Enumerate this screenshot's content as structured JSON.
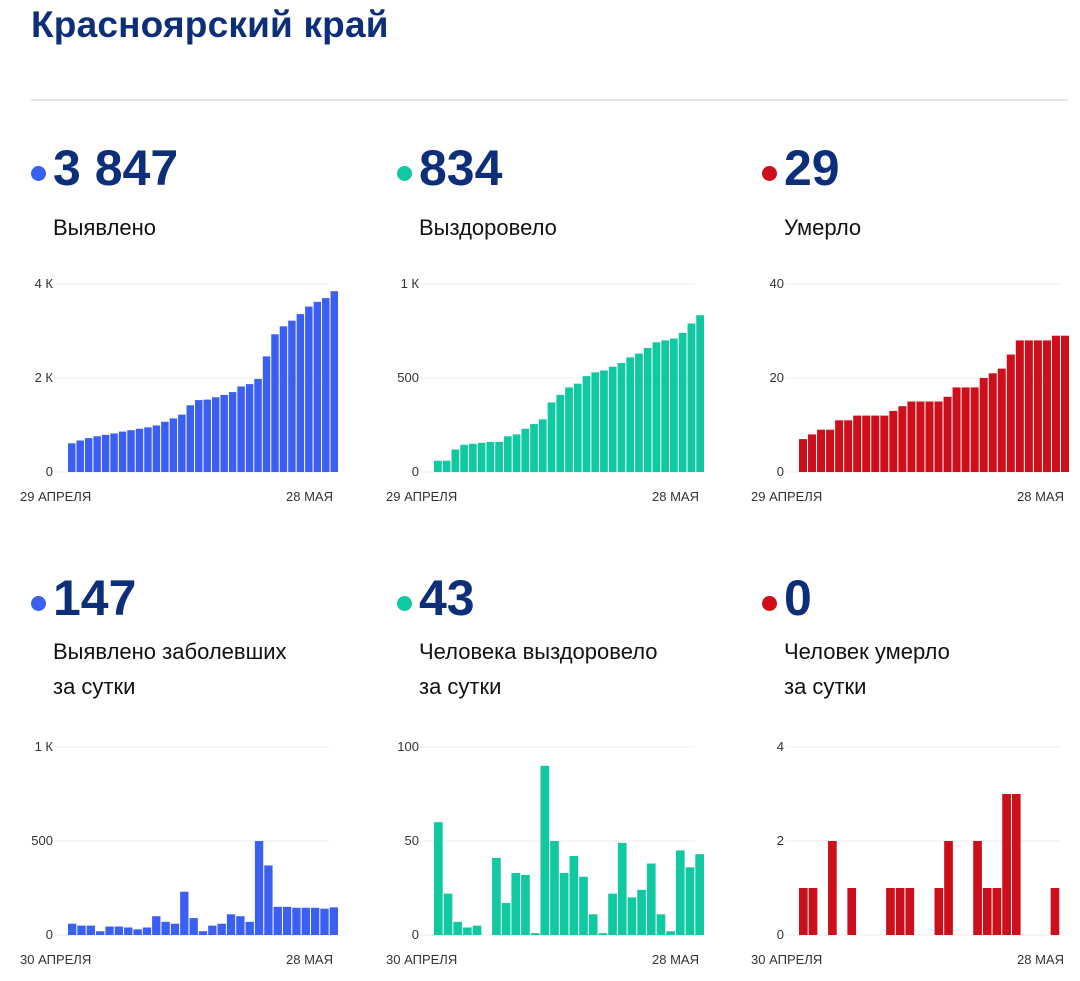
{
  "title": "Красноярский край",
  "colors": {
    "blue": "#3b5ff0",
    "green": "#11c9a0",
    "red": "#cc0f1a",
    "heading": "#0d2f7a"
  },
  "panels": [
    {
      "value": "3 847",
      "label": "Выявлено",
      "chart_data": {
        "type": "bar",
        "color": "#3b5ff0",
        "x_start_label": "29 АПРЕЛЯ",
        "x_end_label": "28 МАЯ",
        "y_ticks": [
          "0",
          "2 К",
          "4 К"
        ],
        "ylim": [
          0,
          4000
        ],
        "values": [
          610,
          670,
          720,
          760,
          790,
          820,
          860,
          890,
          920,
          950,
          990,
          1070,
          1140,
          1220,
          1420,
          1530,
          1540,
          1590,
          1640,
          1700,
          1820,
          1870,
          1980,
          2460,
          2930,
          3100,
          3220,
          3360,
          3520,
          3620,
          3700,
          3847
        ]
      }
    },
    {
      "value": "834",
      "label": "Выздоровело",
      "chart_data": {
        "type": "bar",
        "color": "#11c9a0",
        "x_start_label": "29 АПРЕЛЯ",
        "x_end_label": "28 МАЯ",
        "y_ticks": [
          "0",
          "500",
          "1 К"
        ],
        "ylim": [
          0,
          1000
        ],
        "values": [
          60,
          60,
          120,
          145,
          150,
          155,
          160,
          160,
          190,
          200,
          230,
          255,
          280,
          370,
          410,
          450,
          470,
          510,
          530,
          540,
          560,
          580,
          610,
          630,
          660,
          690,
          700,
          710,
          740,
          790,
          834
        ]
      }
    },
    {
      "value": "29",
      "label": "Умерло",
      "chart_data": {
        "type": "bar",
        "color": "#cc0f1a",
        "x_start_label": "29 АПРЕЛЯ",
        "x_end_label": "28 МАЯ",
        "y_ticks": [
          "0",
          "20",
          "40"
        ],
        "ylim": [
          0,
          40
        ],
        "values": [
          7,
          8,
          9,
          9,
          11,
          11,
          12,
          12,
          12,
          12,
          13,
          14,
          15,
          15,
          15,
          15,
          16,
          18,
          18,
          18,
          20,
          21,
          22,
          25,
          28,
          28,
          28,
          28,
          29,
          29
        ]
      }
    },
    {
      "value": "147",
      "label": "Выявлено заболевших\nза сутки",
      "chart_data": {
        "type": "bar",
        "color": "#3b5ff0",
        "x_start_label": "30 АПРЕЛЯ",
        "x_end_label": "28 МАЯ",
        "y_ticks": [
          "0",
          "500",
          "1 К"
        ],
        "ylim": [
          0,
          1000
        ],
        "values": [
          60,
          50,
          50,
          20,
          45,
          45,
          40,
          30,
          40,
          100,
          70,
          60,
          230,
          90,
          20,
          50,
          60,
          110,
          100,
          70,
          500,
          370,
          150,
          150,
          145,
          145,
          145,
          140,
          147
        ]
      }
    },
    {
      "value": "43",
      "label": "Человека выздоровело\nза сутки",
      "chart_data": {
        "type": "bar",
        "color": "#11c9a0",
        "x_start_label": "30 АПРЕЛЯ",
        "x_end_label": "28 МАЯ",
        "y_ticks": [
          "0",
          "50",
          "100"
        ],
        "ylim": [
          0,
          100
        ],
        "values": [
          60,
          22,
          7,
          4,
          5,
          0,
          41,
          17,
          33,
          32,
          1,
          90,
          50,
          33,
          42,
          31,
          11,
          1,
          22,
          49,
          20,
          24,
          38,
          11,
          2,
          45,
          36,
          43
        ]
      }
    },
    {
      "value": "0",
      "label": "Человек умерло\nза сутки",
      "chart_data": {
        "type": "bar",
        "color": "#cc0f1a",
        "x_start_label": "30 АПРЕЛЯ",
        "x_end_label": "28 МАЯ",
        "y_ticks": [
          "0",
          "2",
          "4"
        ],
        "ylim": [
          0,
          4
        ],
        "values": [
          1,
          1,
          0,
          2,
          0,
          1,
          0,
          0,
          0,
          1,
          1,
          1,
          0,
          0,
          1,
          2,
          0,
          0,
          2,
          1,
          1,
          3,
          3,
          0,
          0,
          0,
          1,
          0
        ]
      }
    }
  ]
}
